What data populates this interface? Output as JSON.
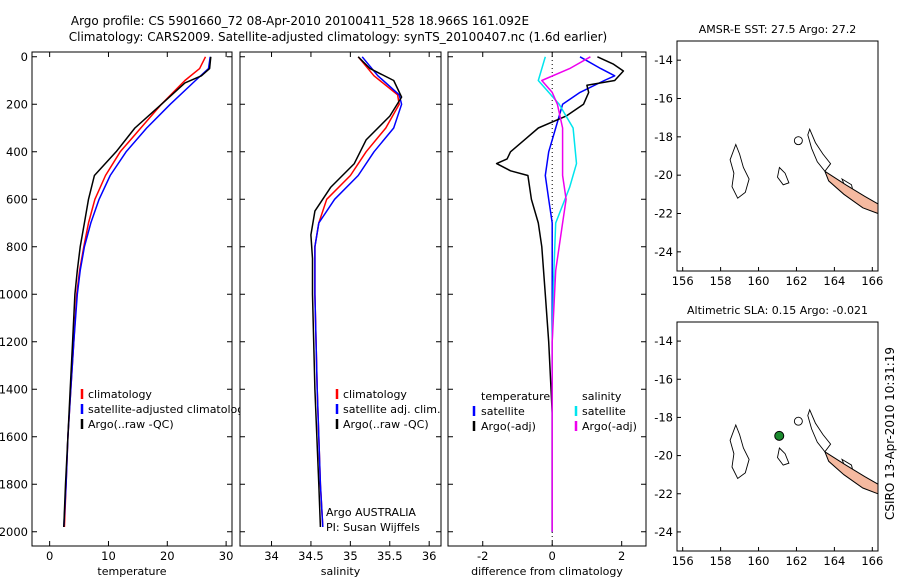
{
  "header": {
    "line1": "Argo profile: CS 5901660_72 08-Apr-2010 20100411_528 18.966S 161.092E",
    "line2": "Climatology: CARS2009. Satellite-adjusted climatology: synTS_20100407.nc (1.6d earlier)"
  },
  "side_stamp": "CSIRO 13-Apr-2010 10:31:19",
  "colors": {
    "climatology": "#ff0000",
    "satellite": "#0000ff",
    "argo": "#000000",
    "sal_sat": "#00e5ee",
    "sal_argo": "#ee00ee"
  },
  "chart_data": [
    {
      "id": "temperature",
      "type": "line",
      "xlabel": "temperature",
      "ylabel": "",
      "xlim": [
        -3,
        31
      ],
      "ylim": [
        2060,
        -20
      ],
      "xticks": [
        0,
        10,
        20,
        30
      ],
      "yticks": [
        0,
        200,
        400,
        600,
        800,
        1000,
        1200,
        1400,
        1600,
        1800,
        2000
      ],
      "legend": [
        "climatology",
        "satellite-adjusted climatology",
        "Argo(..raw -QC)"
      ],
      "series": [
        {
          "name": "climatology",
          "color": "#ff0000",
          "points": [
            [
              26.5,
              0
            ],
            [
              25.5,
              50
            ],
            [
              23,
              100
            ],
            [
              19,
              200
            ],
            [
              15.5,
              300
            ],
            [
              12,
              400
            ],
            [
              9.5,
              500
            ],
            [
              7.7,
              600
            ],
            [
              6.6,
              700
            ],
            [
              5.8,
              800
            ],
            [
              5.1,
              900
            ],
            [
              4.6,
              1000
            ],
            [
              4.1,
              1200
            ],
            [
              3.6,
              1400
            ],
            [
              3.1,
              1600
            ],
            [
              2.8,
              1800
            ],
            [
              2.5,
              1980
            ]
          ]
        },
        {
          "name": "satellite-adjusted climatology",
          "color": "#0000ff",
          "points": [
            [
              27.3,
              0
            ],
            [
              27,
              50
            ],
            [
              24.8,
              100
            ],
            [
              20.5,
              200
            ],
            [
              16.5,
              300
            ],
            [
              13,
              400
            ],
            [
              10.3,
              500
            ],
            [
              8.4,
              600
            ],
            [
              7,
              700
            ],
            [
              5.9,
              800
            ],
            [
              5.2,
              900
            ],
            [
              4.7,
              1000
            ],
            [
              4.1,
              1200
            ],
            [
              3.6,
              1400
            ],
            [
              3.1,
              1600
            ],
            [
              2.8,
              1800
            ],
            [
              2.4,
              1980
            ]
          ]
        },
        {
          "name": "Argo(..raw -QC)",
          "color": "#000000",
          "points": [
            [
              27.4,
              0
            ],
            [
              27.2,
              50
            ],
            [
              25.8,
              80
            ],
            [
              23,
              110
            ],
            [
              19,
              200
            ],
            [
              14.5,
              300
            ],
            [
              11.3,
              400
            ],
            [
              7.6,
              500
            ],
            [
              6.6,
              600
            ],
            [
              5.9,
              700
            ],
            [
              5.2,
              800
            ],
            [
              4.7,
              900
            ],
            [
              4.3,
              1000
            ],
            [
              3.9,
              1200
            ],
            [
              3.5,
              1400
            ],
            [
              3.1,
              1600
            ],
            [
              2.7,
              1800
            ],
            [
              2.4,
              1980
            ]
          ]
        }
      ]
    },
    {
      "id": "salinity",
      "type": "line",
      "xlabel": "salinity",
      "xlim": [
        33.6,
        36.15
      ],
      "ylim": [
        2060,
        -20
      ],
      "xticks": [
        34,
        34.5,
        35,
        35.5,
        36
      ],
      "legend": [
        "climatology",
        "satellite adj. clim.",
        "Argo(..raw -QC)"
      ],
      "annotation": [
        "Argo AUSTRALIA",
        "PI: Susan Wijffels"
      ],
      "series": [
        {
          "name": "climatology",
          "color": "#ff0000",
          "points": [
            [
              35.1,
              0
            ],
            [
              35.3,
              80
            ],
            [
              35.6,
              160
            ],
            [
              35.62,
              200
            ],
            [
              35.45,
              300
            ],
            [
              35.2,
              400
            ],
            [
              35,
              500
            ],
            [
              34.7,
              600
            ],
            [
              34.6,
              700
            ],
            [
              34.55,
              800
            ],
            [
              34.55,
              1000
            ],
            [
              34.58,
              1400
            ],
            [
              34.62,
              1800
            ],
            [
              34.65,
              1980
            ]
          ]
        },
        {
          "name": "satellite adj. clim.",
          "color": "#0000ff",
          "points": [
            [
              35.15,
              0
            ],
            [
              35.35,
              80
            ],
            [
              35.62,
              160
            ],
            [
              35.65,
              200
            ],
            [
              35.55,
              300
            ],
            [
              35.3,
              400
            ],
            [
              35.1,
              500
            ],
            [
              34.8,
              600
            ],
            [
              34.6,
              700
            ],
            [
              34.55,
              800
            ],
            [
              34.55,
              1000
            ],
            [
              34.58,
              1400
            ],
            [
              34.62,
              1800
            ],
            [
              34.65,
              1980
            ]
          ]
        },
        {
          "name": "Argo(..raw -QC)",
          "color": "#000000",
          "points": [
            [
              35.1,
              0
            ],
            [
              35.25,
              50
            ],
            [
              35.55,
              100
            ],
            [
              35.65,
              170
            ],
            [
              35.5,
              250
            ],
            [
              35.2,
              350
            ],
            [
              35.05,
              450
            ],
            [
              34.75,
              550
            ],
            [
              34.55,
              650
            ],
            [
              34.5,
              750
            ],
            [
              34.52,
              850
            ],
            [
              34.52,
              1000
            ],
            [
              34.55,
              1400
            ],
            [
              34.6,
              1800
            ],
            [
              34.62,
              1980
            ]
          ]
        }
      ]
    },
    {
      "id": "difference",
      "type": "line",
      "xlabel": "difference from climatology",
      "xlim": [
        -3,
        2.7
      ],
      "ylim": [
        2060,
        -20
      ],
      "xticks": [
        -2,
        0,
        2
      ],
      "legend_left_title": "temperature",
      "legend_left": [
        "satellite",
        "Argo(-adj)"
      ],
      "legend_right_title": "salinity",
      "legend_right": [
        "satellite",
        "Argo(-adj)"
      ],
      "series": [
        {
          "name": "temperature satellite",
          "color": "#0000ff",
          "points": [
            [
              0.8,
              0
            ],
            [
              1.4,
              50
            ],
            [
              1.8,
              80
            ],
            [
              1.5,
              100
            ],
            [
              0.8,
              150
            ],
            [
              0.3,
              200
            ],
            [
              0.1,
              300
            ],
            [
              -0.1,
              400
            ],
            [
              -0.2,
              500
            ],
            [
              -0.1,
              600
            ],
            [
              0,
              700
            ],
            [
              0,
              800
            ],
            [
              0,
              1000
            ],
            [
              0,
              2000
            ]
          ]
        },
        {
          "name": "temperature Argo(-adj)",
          "color": "#000000",
          "points": [
            [
              1.3,
              0
            ],
            [
              1.75,
              30
            ],
            [
              2.05,
              60
            ],
            [
              1.8,
              100
            ],
            [
              1,
              120
            ],
            [
              1.05,
              150
            ],
            [
              0.9,
              200
            ],
            [
              0.4,
              250
            ],
            [
              -0.4,
              300
            ],
            [
              -0.8,
              350
            ],
            [
              -1.2,
              400
            ],
            [
              -1.3,
              430
            ],
            [
              -1.6,
              450
            ],
            [
              -1.2,
              480
            ],
            [
              -0.7,
              500
            ],
            [
              -0.6,
              600
            ],
            [
              -0.4,
              700
            ],
            [
              -0.3,
              800
            ],
            [
              -0.2,
              1000
            ],
            [
              -0.1,
              1200
            ],
            [
              0,
              1500
            ],
            [
              0,
              2000
            ]
          ]
        },
        {
          "name": "salinity satellite",
          "color": "#00e5ee",
          "points": [
            [
              -0.2,
              0
            ],
            [
              -0.4,
              100
            ],
            [
              0.2,
              200
            ],
            [
              0.4,
              250
            ],
            [
              0.6,
              300
            ],
            [
              0.7,
              450
            ],
            [
              0.5,
              550
            ],
            [
              0.1,
              700
            ],
            [
              0.05,
              900
            ],
            [
              0,
              1200
            ],
            [
              0,
              2000
            ]
          ]
        },
        {
          "name": "salinity Argo(-adj)",
          "color": "#ee00ee",
          "points": [
            [
              1.1,
              0
            ],
            [
              0.5,
              50
            ],
            [
              -0.3,
              100
            ],
            [
              0,
              150
            ],
            [
              0.15,
              200
            ],
            [
              0.3,
              300
            ],
            [
              0.3,
              500
            ],
            [
              0.4,
              600
            ],
            [
              0.3,
              700
            ],
            [
              0.1,
              900
            ],
            [
              0,
              1200
            ],
            [
              0,
              2000
            ]
          ]
        }
      ]
    },
    {
      "id": "sst_map",
      "type": "heatmap",
      "title": "AMSR-E SST: 27.5 Argo: 27.2",
      "xlim": [
        155.7,
        166.3
      ],
      "ylim": [
        -25,
        -13
      ],
      "xticks": [
        156,
        158,
        160,
        162,
        164,
        166
      ],
      "yticks": [
        -14,
        -16,
        -18,
        -20,
        -22,
        -24
      ],
      "marker": [
        161.092,
        -18.966
      ]
    },
    {
      "id": "sla_map",
      "type": "heatmap",
      "title": "Altimetric SLA: 0.15 Argo: -0.021",
      "xlim": [
        155.7,
        166.3
      ],
      "ylim": [
        -25,
        -13
      ],
      "xticks": [
        156,
        158,
        160,
        162,
        164,
        166
      ],
      "yticks": [
        -14,
        -16,
        -18,
        -20,
        -22,
        -24
      ],
      "marker": [
        161.092,
        -18.966
      ]
    }
  ]
}
